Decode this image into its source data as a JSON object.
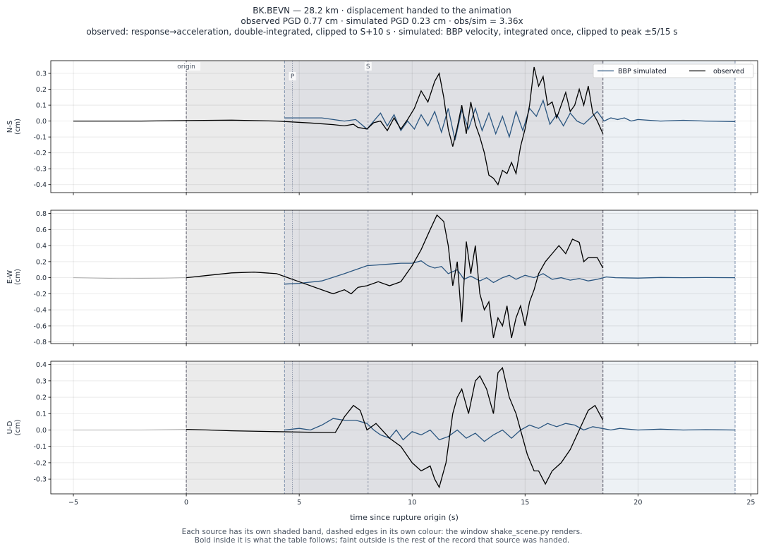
{
  "header": {
    "line1": "BK.BEVN  —  28.2 km   ·   displacement handed to the animation",
    "line2": "observed PGD 0.77 cm   ·   simulated PGD 0.23 cm   ·   obs/sim = 3.36x",
    "line3": "observed: response→acceleration, double-integrated, clipped to S+10 s   ·   simulated: BBP velocity, integrated once, clipped to peak ±5/15 s"
  },
  "footnote": {
    "line1": "Each source has its own shaded band, dashed edges in its own colour: the window shake_scene.py renders.",
    "line2": "Bold inside it is what the table follows;   faint outside is the rest of the record that source was handed."
  },
  "chart_data": {
    "type": "line",
    "xlabel": "time since rupture origin (s)",
    "xlim": [
      -6,
      25.3
    ],
    "xticks": [
      -5,
      0,
      5,
      10,
      15,
      20,
      25
    ],
    "legend": {
      "placement": "top-right",
      "entries": [
        "BBP simulated",
        "observed"
      ]
    },
    "colors": {
      "observed": "#000000",
      "simulated": "#2b5680",
      "faint": "#aaaaaa",
      "observed_band": "#ebebeb",
      "overlap_band": "#dfe0e4",
      "simulated_band": "#edf1f5",
      "observed_edge": "#555566",
      "simulated_edge": "#7b8fab"
    },
    "markers": [
      {
        "label": "origin",
        "t": 0
      },
      {
        "label": "P",
        "t": 4.7
      },
      {
        "label": "S",
        "t": 8.05
      }
    ],
    "windows": {
      "observed": [
        0,
        18.45
      ],
      "simulated": [
        4.35,
        24.3
      ]
    },
    "grid": true,
    "panels": [
      {
        "ylabel": "N-S\n(cm)",
        "ylim": [
          -0.45,
          0.38
        ],
        "yticks": [
          -0.4,
          -0.3,
          -0.2,
          -0.1,
          0.0,
          0.1,
          0.2,
          0.3
        ],
        "observed": [
          [
            -5,
            0
          ],
          [
            -2,
            0
          ],
          [
            0,
            0.003
          ],
          [
            2,
            0.006
          ],
          [
            4,
            0.0
          ],
          [
            5.5,
            -0.012
          ],
          [
            6.5,
            -0.022
          ],
          [
            7,
            -0.03
          ],
          [
            7.4,
            -0.02
          ],
          [
            7.6,
            -0.04
          ],
          [
            8,
            -0.05
          ],
          [
            8.3,
            -0.01
          ],
          [
            8.6,
            0.0
          ],
          [
            8.9,
            -0.06
          ],
          [
            9.2,
            0.02
          ],
          [
            9.5,
            -0.05
          ],
          [
            9.8,
            0.01
          ],
          [
            10.1,
            0.08
          ],
          [
            10.4,
            0.19
          ],
          [
            10.7,
            0.12
          ],
          [
            11.0,
            0.25
          ],
          [
            11.2,
            0.3
          ],
          [
            11.4,
            0.15
          ],
          [
            11.6,
            -0.05
          ],
          [
            11.8,
            -0.16
          ],
          [
            12.0,
            -0.04
          ],
          [
            12.2,
            0.1
          ],
          [
            12.4,
            -0.08
          ],
          [
            12.6,
            0.12
          ],
          [
            12.8,
            -0.02
          ],
          [
            13.0,
            -0.1
          ],
          [
            13.2,
            -0.2
          ],
          [
            13.4,
            -0.34
          ],
          [
            13.6,
            -0.36
          ],
          [
            13.8,
            -0.4
          ],
          [
            14.0,
            -0.31
          ],
          [
            14.2,
            -0.33
          ],
          [
            14.4,
            -0.26
          ],
          [
            14.6,
            -0.33
          ],
          [
            14.8,
            -0.16
          ],
          [
            15.0,
            -0.05
          ],
          [
            15.2,
            0.1
          ],
          [
            15.4,
            0.34
          ],
          [
            15.6,
            0.22
          ],
          [
            15.8,
            0.28
          ],
          [
            16.0,
            0.1
          ],
          [
            16.2,
            0.12
          ],
          [
            16.4,
            0.02
          ],
          [
            16.6,
            0.1
          ],
          [
            16.8,
            0.18
          ],
          [
            17.0,
            0.06
          ],
          [
            17.2,
            0.1
          ],
          [
            17.4,
            0.2
          ],
          [
            17.6,
            0.1
          ],
          [
            17.8,
            0.22
          ],
          [
            18.0,
            0.05
          ],
          [
            18.2,
            0.0
          ],
          [
            18.45,
            -0.08
          ]
        ],
        "observed_faint": [],
        "simulated": [
          [
            4.35,
            0.02
          ],
          [
            6,
            0.02
          ],
          [
            7,
            0.0
          ],
          [
            7.5,
            0.01
          ],
          [
            8,
            -0.05
          ],
          [
            8.3,
            0.0
          ],
          [
            8.6,
            0.05
          ],
          [
            8.9,
            -0.03
          ],
          [
            9.2,
            0.04
          ],
          [
            9.5,
            -0.06
          ],
          [
            9.8,
            0.0
          ],
          [
            10.1,
            -0.05
          ],
          [
            10.4,
            0.04
          ],
          [
            10.7,
            -0.03
          ],
          [
            11.0,
            0.06
          ],
          [
            11.3,
            -0.07
          ],
          [
            11.6,
            0.08
          ],
          [
            11.9,
            -0.12
          ],
          [
            12.2,
            0.07
          ],
          [
            12.5,
            -0.05
          ],
          [
            12.8,
            0.08
          ],
          [
            13.1,
            -0.06
          ],
          [
            13.4,
            0.05
          ],
          [
            13.7,
            -0.08
          ],
          [
            14.0,
            0.03
          ],
          [
            14.3,
            -0.1
          ],
          [
            14.6,
            0.06
          ],
          [
            14.9,
            -0.06
          ],
          [
            15.2,
            0.08
          ],
          [
            15.5,
            0.03
          ],
          [
            15.8,
            0.13
          ],
          [
            16.1,
            -0.02
          ],
          [
            16.4,
            0.04
          ],
          [
            16.7,
            -0.03
          ],
          [
            17.0,
            0.05
          ],
          [
            17.3,
            0.0
          ],
          [
            17.6,
            -0.02
          ],
          [
            17.9,
            0.02
          ],
          [
            18.2,
            0.06
          ],
          [
            18.5,
            0.0
          ],
          [
            18.8,
            0.02
          ],
          [
            19.1,
            0.01
          ],
          [
            19.4,
            0.02
          ],
          [
            19.7,
            0.0
          ],
          [
            20,
            0.01
          ],
          [
            21,
            0.0
          ],
          [
            22,
            0.005
          ],
          [
            23,
            0.0
          ],
          [
            24.3,
            -0.003
          ]
        ]
      },
      {
        "ylabel": "E-W\n(cm)",
        "ylim": [
          -0.82,
          0.84
        ],
        "yticks": [
          -0.8,
          -0.6,
          -0.4,
          -0.2,
          0.0,
          0.2,
          0.4,
          0.6,
          0.8
        ],
        "observed": [
          [
            0,
            0.0
          ],
          [
            1,
            0.03
          ],
          [
            2,
            0.06
          ],
          [
            3,
            0.07
          ],
          [
            4,
            0.05
          ],
          [
            4.5,
            0.0
          ],
          [
            5,
            -0.05
          ],
          [
            6,
            -0.15
          ],
          [
            6.5,
            -0.2
          ],
          [
            7,
            -0.15
          ],
          [
            7.3,
            -0.2
          ],
          [
            7.6,
            -0.12
          ],
          [
            8,
            -0.1
          ],
          [
            8.5,
            -0.05
          ],
          [
            9,
            -0.1
          ],
          [
            9.5,
            -0.05
          ],
          [
            10,
            0.15
          ],
          [
            10.4,
            0.35
          ],
          [
            10.8,
            0.6
          ],
          [
            11.1,
            0.78
          ],
          [
            11.4,
            0.7
          ],
          [
            11.6,
            0.4
          ],
          [
            11.8,
            -0.1
          ],
          [
            12.0,
            0.2
          ],
          [
            12.2,
            -0.55
          ],
          [
            12.4,
            0.45
          ],
          [
            12.6,
            0.05
          ],
          [
            12.8,
            0.4
          ],
          [
            13.0,
            -0.2
          ],
          [
            13.2,
            -0.4
          ],
          [
            13.4,
            -0.3
          ],
          [
            13.6,
            -0.75
          ],
          [
            13.8,
            -0.5
          ],
          [
            14.0,
            -0.6
          ],
          [
            14.2,
            -0.35
          ],
          [
            14.4,
            -0.75
          ],
          [
            14.6,
            -0.5
          ],
          [
            14.8,
            -0.35
          ],
          [
            15.0,
            -0.6
          ],
          [
            15.2,
            -0.3
          ],
          [
            15.4,
            -0.15
          ],
          [
            15.6,
            0.05
          ],
          [
            15.9,
            0.2
          ],
          [
            16.2,
            0.3
          ],
          [
            16.5,
            0.4
          ],
          [
            16.8,
            0.3
          ],
          [
            17.1,
            0.48
          ],
          [
            17.4,
            0.44
          ],
          [
            17.6,
            0.2
          ],
          [
            17.8,
            0.25
          ],
          [
            18.0,
            0.25
          ],
          [
            18.2,
            0.25
          ],
          [
            18.45,
            0.12
          ]
        ],
        "observed_faint": [
          [
            -5,
            0.0
          ],
          [
            -3,
            -0.01
          ],
          [
            -1,
            -0.005
          ],
          [
            0,
            0.0
          ]
        ],
        "simulated": [
          [
            4.35,
            -0.08
          ],
          [
            5,
            -0.07
          ],
          [
            6,
            -0.04
          ],
          [
            7,
            0.05
          ],
          [
            8,
            0.15
          ],
          [
            9,
            0.17
          ],
          [
            9.5,
            0.18
          ],
          [
            10,
            0.18
          ],
          [
            10.4,
            0.21
          ],
          [
            10.7,
            0.15
          ],
          [
            11.0,
            0.12
          ],
          [
            11.3,
            0.14
          ],
          [
            11.6,
            0.05
          ],
          [
            12.0,
            0.1
          ],
          [
            12.3,
            -0.02
          ],
          [
            12.6,
            0.02
          ],
          [
            13.0,
            -0.04
          ],
          [
            13.3,
            0.0
          ],
          [
            13.6,
            -0.06
          ],
          [
            14.0,
            0.0
          ],
          [
            14.3,
            0.03
          ],
          [
            14.6,
            -0.02
          ],
          [
            15.0,
            0.03
          ],
          [
            15.4,
            0.0
          ],
          [
            15.8,
            0.05
          ],
          [
            16.2,
            -0.02
          ],
          [
            16.6,
            0.0
          ],
          [
            17.0,
            -0.03
          ],
          [
            17.4,
            -0.01
          ],
          [
            17.8,
            -0.04
          ],
          [
            18.2,
            -0.02
          ],
          [
            18.6,
            0.01
          ],
          [
            19,
            0.0
          ],
          [
            20,
            -0.005
          ],
          [
            21,
            0.003
          ],
          [
            22,
            0.0
          ],
          [
            23,
            0.002
          ],
          [
            24.3,
            0.0
          ]
        ]
      },
      {
        "ylabel": "U-D\n(cm)",
        "ylim": [
          -0.39,
          0.42
        ],
        "yticks": [
          -0.3,
          -0.2,
          -0.1,
          0.0,
          0.1,
          0.2,
          0.3,
          0.4
        ],
        "observed": [
          [
            0,
            0.004
          ],
          [
            1,
            0.0
          ],
          [
            2,
            -0.005
          ],
          [
            4,
            -0.01
          ],
          [
            6,
            -0.015
          ],
          [
            6.6,
            -0.015
          ],
          [
            7,
            0.08
          ],
          [
            7.4,
            0.15
          ],
          [
            7.7,
            0.12
          ],
          [
            8,
            0.0
          ],
          [
            8.4,
            0.04
          ],
          [
            9,
            -0.05
          ],
          [
            9.5,
            -0.1
          ],
          [
            10,
            -0.2
          ],
          [
            10.4,
            -0.25
          ],
          [
            10.8,
            -0.22
          ],
          [
            11.0,
            -0.3
          ],
          [
            11.2,
            -0.35
          ],
          [
            11.5,
            -0.2
          ],
          [
            11.8,
            0.1
          ],
          [
            12.0,
            0.2
          ],
          [
            12.2,
            0.25
          ],
          [
            12.5,
            0.1
          ],
          [
            12.8,
            0.3
          ],
          [
            13.0,
            0.33
          ],
          [
            13.3,
            0.25
          ],
          [
            13.6,
            0.1
          ],
          [
            13.8,
            0.35
          ],
          [
            14.0,
            0.38
          ],
          [
            14.3,
            0.2
          ],
          [
            14.6,
            0.1
          ],
          [
            14.9,
            -0.05
          ],
          [
            15.1,
            -0.15
          ],
          [
            15.4,
            -0.25
          ],
          [
            15.6,
            -0.25
          ],
          [
            15.9,
            -0.33
          ],
          [
            16.2,
            -0.25
          ],
          [
            16.6,
            -0.2
          ],
          [
            17.0,
            -0.12
          ],
          [
            17.4,
            0.0
          ],
          [
            17.8,
            0.12
          ],
          [
            18.1,
            0.15
          ],
          [
            18.45,
            0.06
          ]
        ],
        "observed_faint": [
          [
            -5,
            0.0
          ],
          [
            -2,
            0.0
          ],
          [
            0,
            0.004
          ]
        ],
        "simulated": [
          [
            4.35,
            0.0
          ],
          [
            5,
            0.01
          ],
          [
            5.5,
            0.0
          ],
          [
            6,
            0.03
          ],
          [
            6.5,
            0.07
          ],
          [
            7,
            0.06
          ],
          [
            7.5,
            0.06
          ],
          [
            8,
            0.04
          ],
          [
            8.3,
            0.0
          ],
          [
            8.6,
            -0.03
          ],
          [
            9,
            -0.05
          ],
          [
            9.3,
            0.0
          ],
          [
            9.6,
            -0.06
          ],
          [
            10,
            -0.01
          ],
          [
            10.4,
            -0.03
          ],
          [
            10.8,
            0.0
          ],
          [
            11.2,
            -0.06
          ],
          [
            11.6,
            -0.04
          ],
          [
            12.0,
            0.0
          ],
          [
            12.4,
            -0.05
          ],
          [
            12.8,
            -0.02
          ],
          [
            13.2,
            -0.07
          ],
          [
            13.6,
            -0.03
          ],
          [
            14.0,
            0.0
          ],
          [
            14.4,
            -0.05
          ],
          [
            14.8,
            0.0
          ],
          [
            15.2,
            0.03
          ],
          [
            15.6,
            0.01
          ],
          [
            16.0,
            0.04
          ],
          [
            16.4,
            0.02
          ],
          [
            16.8,
            0.04
          ],
          [
            17.2,
            0.03
          ],
          [
            17.6,
            0.0
          ],
          [
            18.0,
            0.02
          ],
          [
            18.4,
            0.01
          ],
          [
            18.8,
            0.0
          ],
          [
            19.2,
            0.01
          ],
          [
            20,
            0.0
          ],
          [
            21,
            0.005
          ],
          [
            22,
            0.0
          ],
          [
            23,
            0.002
          ],
          [
            24.3,
            0.0
          ]
        ]
      }
    ]
  }
}
